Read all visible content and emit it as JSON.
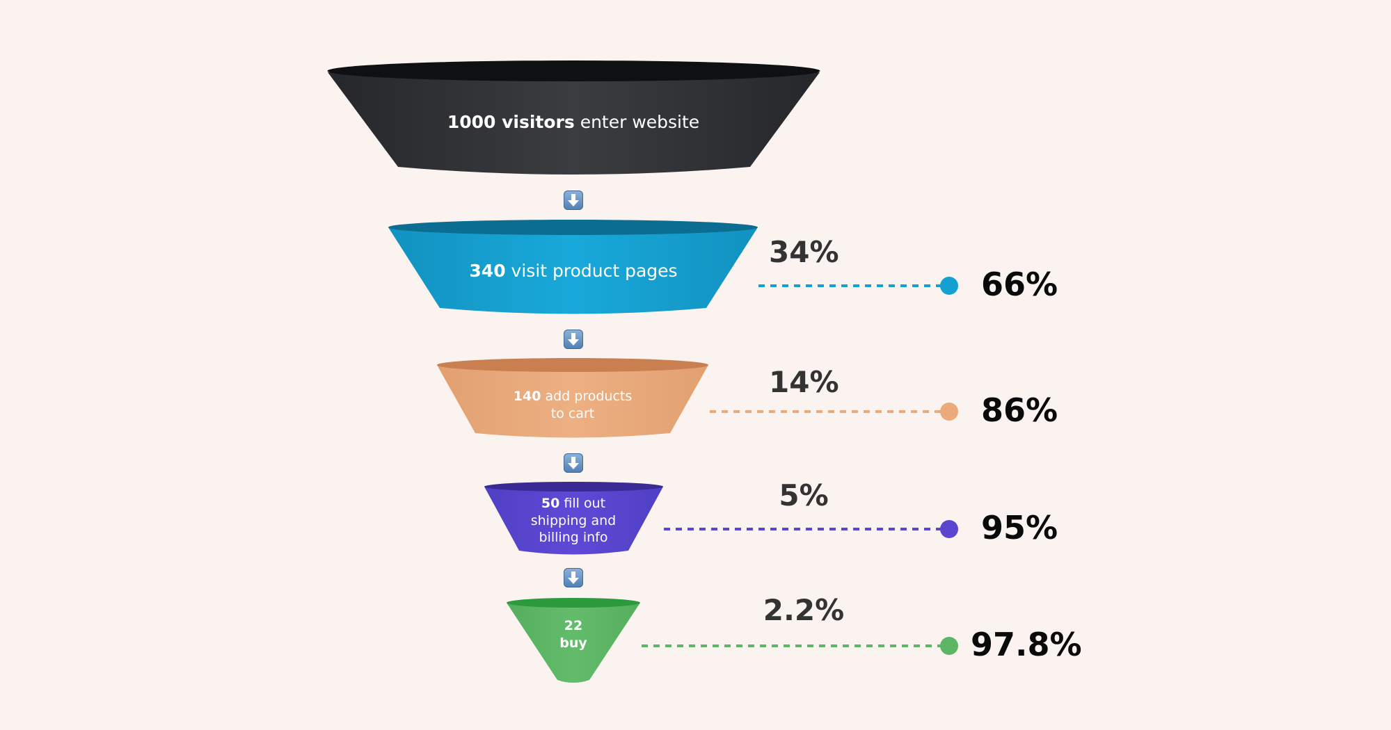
{
  "funnel": {
    "stages": [
      {
        "id": "visitors",
        "number": "1000 visitors",
        "text": "enter website",
        "count": 1000,
        "colors": {
          "body": "#333538",
          "rim": "#0F1011"
        }
      },
      {
        "id": "product-pages",
        "number": "340",
        "text": "visit product pages",
        "count": 340,
        "conversion": "34%",
        "dropoff": "66%",
        "colors": {
          "body": "#14A1D1",
          "rim": "#0C6D93",
          "line": "#14A1D1"
        }
      },
      {
        "id": "cart",
        "number": "140",
        "text_line1": "add products",
        "text_line2": "to cart",
        "count": 140,
        "conversion": "14%",
        "dropoff": "86%",
        "colors": {
          "body": "#EAAA7B",
          "rim": "#C97F4F",
          "line": "#EAAA7B"
        }
      },
      {
        "id": "shipping",
        "number": "50",
        "text_line1": "fill out",
        "text_line2": "shipping and",
        "text_line3": "billing info",
        "count": 50,
        "conversion": "5%",
        "dropoff": "95%",
        "colors": {
          "body": "#5A45CF",
          "rim": "#3A2A96",
          "line": "#5A45CF"
        }
      },
      {
        "id": "buy",
        "number": "22",
        "text": "buy",
        "count": 22,
        "conversion": "2.2%",
        "dropoff": "97.8%",
        "colors": {
          "body": "#5DB665",
          "rim": "#2A9A3D",
          "line": "#5DB665"
        }
      }
    ],
    "arrow_icon": "down-arrow-icon"
  }
}
